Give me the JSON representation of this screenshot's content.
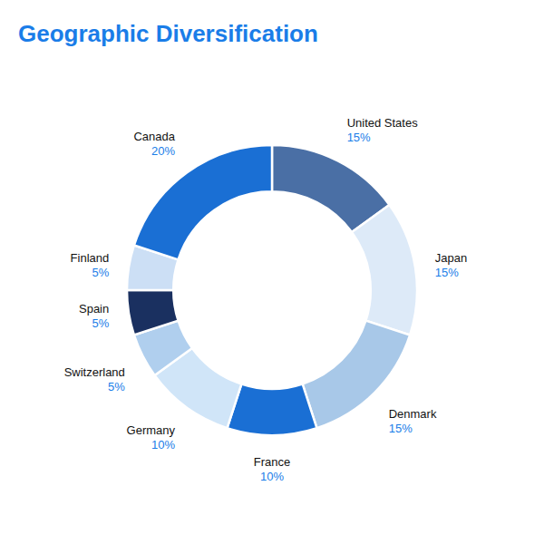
{
  "chart_data": {
    "type": "donut",
    "title": "Geographic Diversification",
    "categories": [
      "United States",
      "Japan",
      "Denmark",
      "France",
      "Germany",
      "Switzerland",
      "Spain",
      "Finland",
      "Canada"
    ],
    "values": [
      15,
      15,
      15,
      10,
      10,
      5,
      5,
      5,
      20
    ],
    "value_labels": [
      "15%",
      "15%",
      "15%",
      "10%",
      "10%",
      "5%",
      "5%",
      "5%",
      "20%"
    ],
    "colors": [
      "#4a6fa5",
      "#ddeaf8",
      "#a8c8e8",
      "#1a6fd4",
      "#d0e5f8",
      "#b0cfee",
      "#1a3060",
      "#ccdff5",
      "#1a6fd4"
    ],
    "data_labels": true
  }
}
